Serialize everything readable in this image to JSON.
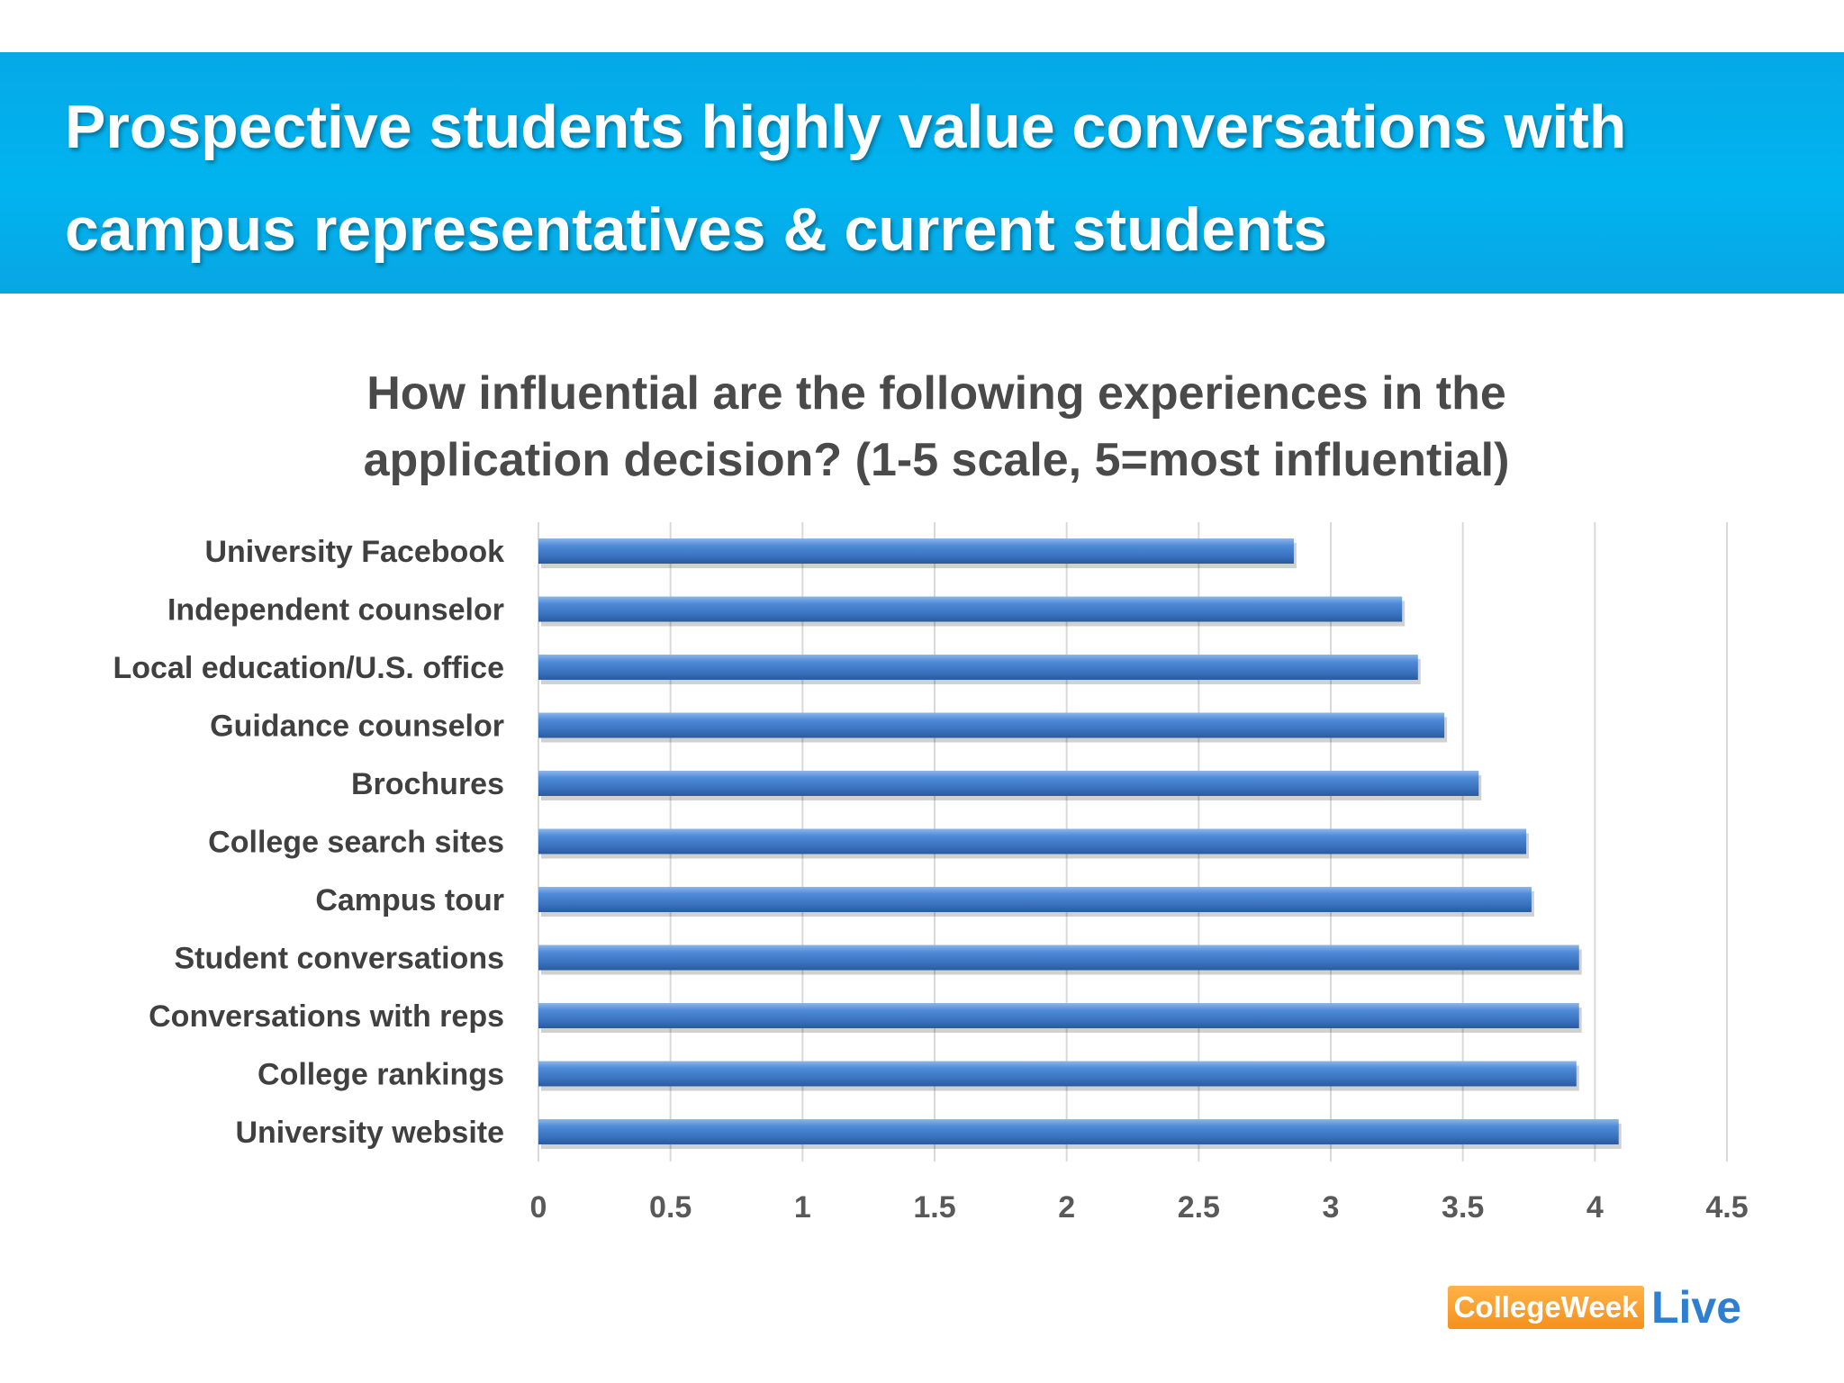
{
  "header": {
    "title": "Prospective students highly value conversations with campus representatives & current students"
  },
  "chart_data": {
    "type": "bar",
    "orientation": "horizontal",
    "title": "How influential are the following experiences in the application decision? (1-5 scale, 5=most influential)",
    "categories": [
      "University Facebook",
      "Independent counselor",
      "Local education/U.S. office",
      "Guidance counselor",
      "Brochures",
      "College search sites",
      "Campus tour",
      "Student conversations",
      "Conversations with reps",
      "College rankings",
      "University website"
    ],
    "values": [
      2.86,
      3.27,
      3.33,
      3.43,
      3.56,
      3.74,
      3.76,
      3.94,
      3.94,
      3.93,
      4.09
    ],
    "xlim": [
      0,
      4.5
    ],
    "xticks": [
      "0",
      "0.5",
      "1",
      "1.5",
      "2",
      "2.5",
      "3",
      "3.5",
      "4",
      "4.5"
    ],
    "grid": true,
    "bar_color": "#3e7bcc"
  },
  "logo": {
    "word": "CollegeWeek",
    "live": "Live"
  }
}
